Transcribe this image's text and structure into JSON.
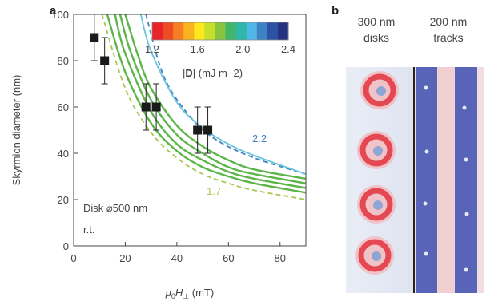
{
  "panel_a": {
    "label": "a",
    "notes": [
      "Disk ⌀500 nm",
      "r.t."
    ],
    "curve_labels": [
      "2.2",
      "1.7"
    ],
    "colorbar": {
      "ticks": [
        "1.2",
        "1.6",
        "2.0",
        "2.4"
      ],
      "label_prefix": "|",
      "label_bold": "D",
      "label_suffix": "| (mJ m−2)",
      "colors": [
        "#e8232a",
        "#ef4b25",
        "#f57f22",
        "#fbb21f",
        "#fde81f",
        "#c6df2a",
        "#86c440",
        "#41b66b",
        "#2fb7a8",
        "#4fb8e6",
        "#3f82c4",
        "#2e52a3",
        "#25327f"
      ]
    },
    "colors": {
      "solid_green": "#5cb548",
      "dashed_green": "#a6c84f",
      "cyan": "#6cc4dc",
      "dashed_blue": "#3f82c4"
    }
  },
  "panel_b": {
    "label": "b",
    "disks_title": [
      "300 nm",
      "disks"
    ],
    "tracks_title": [
      "200 nm",
      "tracks"
    ]
  },
  "chart_data": {
    "type": "line",
    "xlabel_html": "μ0H⊥ (mT)",
    "xlabel_parts": {
      "mu": "μ",
      "sub0": "0",
      "H": "H",
      "perp": "⊥",
      "unit": " (mT)"
    },
    "ylabel": "Skyrmion diameter (nm)",
    "xlim": [
      0,
      90
    ],
    "ylim": [
      0,
      100
    ],
    "xticks": [
      0,
      20,
      40,
      60,
      80
    ],
    "yticks": [
      0,
      20,
      40,
      60,
      80,
      100
    ],
    "series": [
      {
        "style": "dashed_blue",
        "x": [
          28,
          35,
          45,
          55,
          70,
          90
        ],
        "y": [
          100,
          73,
          56,
          46,
          38,
          31
        ]
      },
      {
        "style": "cyan",
        "x": [
          26,
          30,
          40,
          50,
          60,
          70,
          90
        ],
        "y": [
          100,
          84,
          62,
          51,
          44,
          39,
          31
        ]
      },
      {
        "style": "solid_green",
        "x": [
          20,
          25,
          30,
          40,
          50,
          60,
          70,
          90
        ],
        "y": [
          100,
          82,
          68,
          52,
          43,
          37,
          33,
          29
        ]
      },
      {
        "style": "solid_green",
        "x": [
          18,
          22,
          30,
          40,
          50,
          60,
          70,
          90
        ],
        "y": [
          100,
          84,
          63,
          48,
          40,
          34,
          31,
          27
        ]
      },
      {
        "style": "solid_green",
        "x": [
          16,
          20,
          30,
          40,
          50,
          60,
          70,
          90
        ],
        "y": [
          100,
          83,
          58,
          44,
          37,
          32,
          29,
          25
        ]
      },
      {
        "style": "solid_green",
        "x": [
          13,
          20,
          30,
          40,
          50,
          60,
          70,
          90
        ],
        "y": [
          100,
          75,
          53,
          41,
          34,
          30,
          27,
          23
        ]
      },
      {
        "style": "dashed_green",
        "x": [
          11,
          20,
          30,
          40,
          50,
          60,
          70,
          90
        ],
        "y": [
          100,
          68,
          49,
          38,
          31,
          27,
          24,
          20
        ]
      }
    ],
    "points": [
      {
        "x": 8,
        "y": 90,
        "err": 10
      },
      {
        "x": 12,
        "y": 80,
        "err": 10
      },
      {
        "x": 28,
        "y": 60,
        "err": 10
      },
      {
        "x": 32,
        "y": 60,
        "err": 10
      },
      {
        "x": 48,
        "y": 50,
        "err": 10
      },
      {
        "x": 52,
        "y": 50,
        "err": 10
      }
    ]
  }
}
